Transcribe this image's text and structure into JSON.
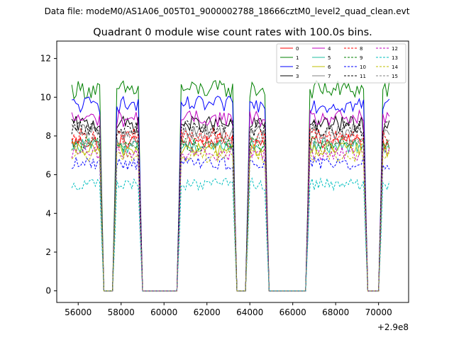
{
  "chart_data": {
    "type": "line",
    "suptitle": "Data file: modeM0/AS1A06_005T01_9000002788_18666cztM0_level2_quad_clean.evt",
    "title": "Quadrant 0 module wise count rates with 100.0s bins.",
    "xlabel": "",
    "ylabel": "",
    "x_offset_label": "+2.9e8",
    "xlim": [
      55000,
      71400
    ],
    "ylim": [
      -0.6,
      12.9
    ],
    "x_ticks": [
      56000,
      58000,
      60000,
      62000,
      64000,
      66000,
      68000,
      70000
    ],
    "x_tick_labels": [
      "56000",
      "58000",
      "60000",
      "62000",
      "64000",
      "66000",
      "68000",
      "70000"
    ],
    "y_ticks": [
      0,
      2,
      4,
      6,
      8,
      10,
      12
    ],
    "y_tick_labels": [
      "0",
      "2",
      "4",
      "6",
      "8",
      "10",
      "12"
    ],
    "grid": false,
    "legend_position": "top-right",
    "time_bin_s": 100,
    "gaps": [
      [
        57150,
        57650
      ],
      [
        58950,
        60650
      ],
      [
        63350,
        63850
      ],
      [
        64850,
        66650
      ],
      [
        69450,
        70050
      ]
    ],
    "segments": [
      [
        55700,
        57000
      ],
      [
        57750,
        58800
      ],
      [
        60800,
        63200
      ],
      [
        63950,
        64700
      ],
      [
        66750,
        69300
      ],
      [
        70150,
        70500
      ]
    ],
    "series": [
      {
        "name": "0",
        "color": "#ff0000",
        "dash": "solid",
        "base": 7.7
      },
      {
        "name": "1",
        "color": "#008000",
        "dash": "solid",
        "base": 10.4
      },
      {
        "name": "2",
        "color": "#0000ff",
        "dash": "solid",
        "base": 9.6
      },
      {
        "name": "3",
        "color": "#000000",
        "dash": "solid",
        "base": 8.6
      },
      {
        "name": "4",
        "color": "#bf00bf",
        "dash": "solid",
        "base": 8.9
      },
      {
        "name": "5",
        "color": "#1fbf9f",
        "dash": "solid",
        "base": 7.5
      },
      {
        "name": "6",
        "color": "#bfbf00",
        "dash": "solid",
        "base": 7.3
      },
      {
        "name": "7",
        "color": "#808080",
        "dash": "solid",
        "base": 8.2
      },
      {
        "name": "8",
        "color": "#ff0000",
        "dash": "dashed",
        "base": 8.0
      },
      {
        "name": "9",
        "color": "#008000",
        "dash": "dashed",
        "base": 7.6
      },
      {
        "name": "10",
        "color": "#0000ff",
        "dash": "dashed",
        "base": 6.6
      },
      {
        "name": "11",
        "color": "#000000",
        "dash": "dashed",
        "base": 8.4
      },
      {
        "name": "12",
        "color": "#bf00bf",
        "dash": "dashed",
        "base": 7.1
      },
      {
        "name": "13",
        "color": "#00bfbf",
        "dash": "dashed",
        "base": 5.5
      },
      {
        "name": "14",
        "color": "#bfbf00",
        "dash": "dashed",
        "base": 7.0
      },
      {
        "name": "15",
        "color": "#808080",
        "dash": "dashed",
        "base": 7.8
      }
    ]
  }
}
